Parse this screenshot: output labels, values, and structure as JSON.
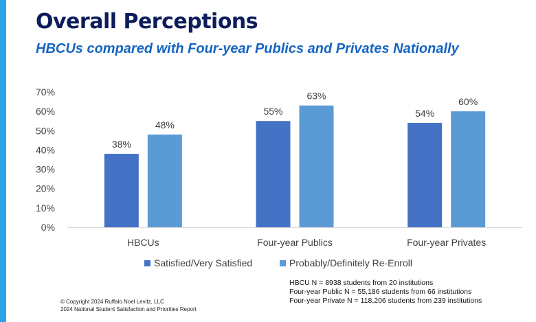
{
  "slide": {
    "title": "Overall Perceptions",
    "subtitle": "HBCUs compared with Four-year Publics and Privates Nationally",
    "accent_color": "#2aa3e6",
    "title_color": "#0d1d5b",
    "subtitle_color": "#1565c0"
  },
  "chart_data": {
    "type": "bar",
    "title": "",
    "categories": [
      "HBCUs",
      "Four-year Publics",
      "Four-year Privates"
    ],
    "series": [
      {
        "name": "Satisfied/Very Satisfied",
        "values": [
          38,
          55,
          54
        ],
        "labels": [
          "38%",
          "55%",
          "54%"
        ],
        "color": "#4472c4"
      },
      {
        "name": "Probably/Definitely Re-Enroll",
        "values": [
          48,
          63,
          60
        ],
        "labels": [
          "48%",
          "63%",
          "60%"
        ],
        "color": "#5b9bd5"
      }
    ],
    "ylim": [
      0,
      70
    ],
    "yticks": [
      "0%",
      "10%",
      "20%",
      "30%",
      "40%",
      "50%",
      "60%",
      "70%"
    ],
    "grid": false,
    "legend_position": "bottom",
    "xlabel": "",
    "ylabel": ""
  },
  "notes": [
    "HBCU N = 8938 students from 20 institutions",
    "Four-year Public N = 55,186 students from 66 institutions",
    "Four-year Private N = 118,206 students from 239 institutions"
  ],
  "footer": [
    "© Copyright 2024 Ruffalo Noel Levitz, LLC",
    "2024 National Student Satisfaction and Priorities Report"
  ]
}
